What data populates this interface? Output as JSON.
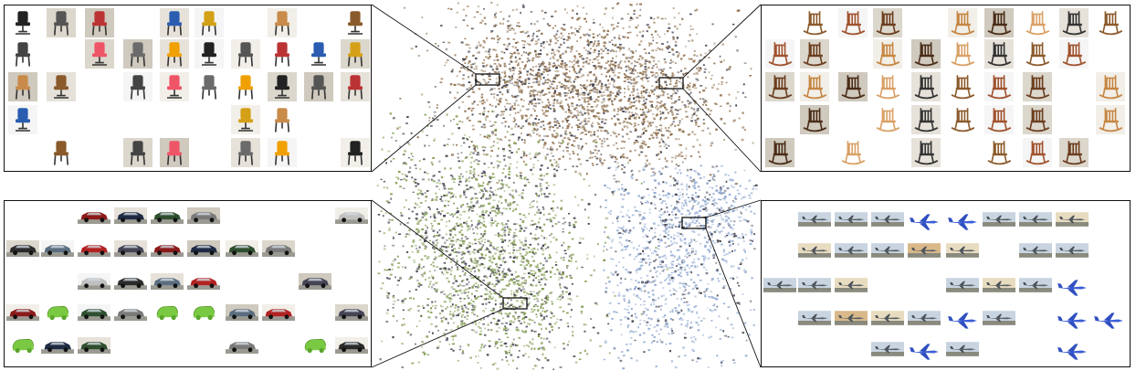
{
  "colors": {
    "chair_cloud": "#8a6a45",
    "car_cloud": "#7f9a4c",
    "plane_cloud": "#8da6cf",
    "dark_points": "#3b3b4a",
    "panel_border": "#111111",
    "render_green": "#7ac943",
    "render_blue": "#3d5fd6",
    "render_orange": "#e0a321"
  },
  "panels": [
    {
      "id": "chairs",
      "thumb_kind": "chair",
      "thumb_count": 48
    },
    {
      "id": "rocking_chairs",
      "thumb_kind": "rocking-chair",
      "thumb_count": 48
    },
    {
      "id": "cars",
      "thumb_kind": "car",
      "thumb_count": 40
    },
    {
      "id": "planes",
      "thumb_kind": "plane",
      "thumb_count": 38
    }
  ]
}
